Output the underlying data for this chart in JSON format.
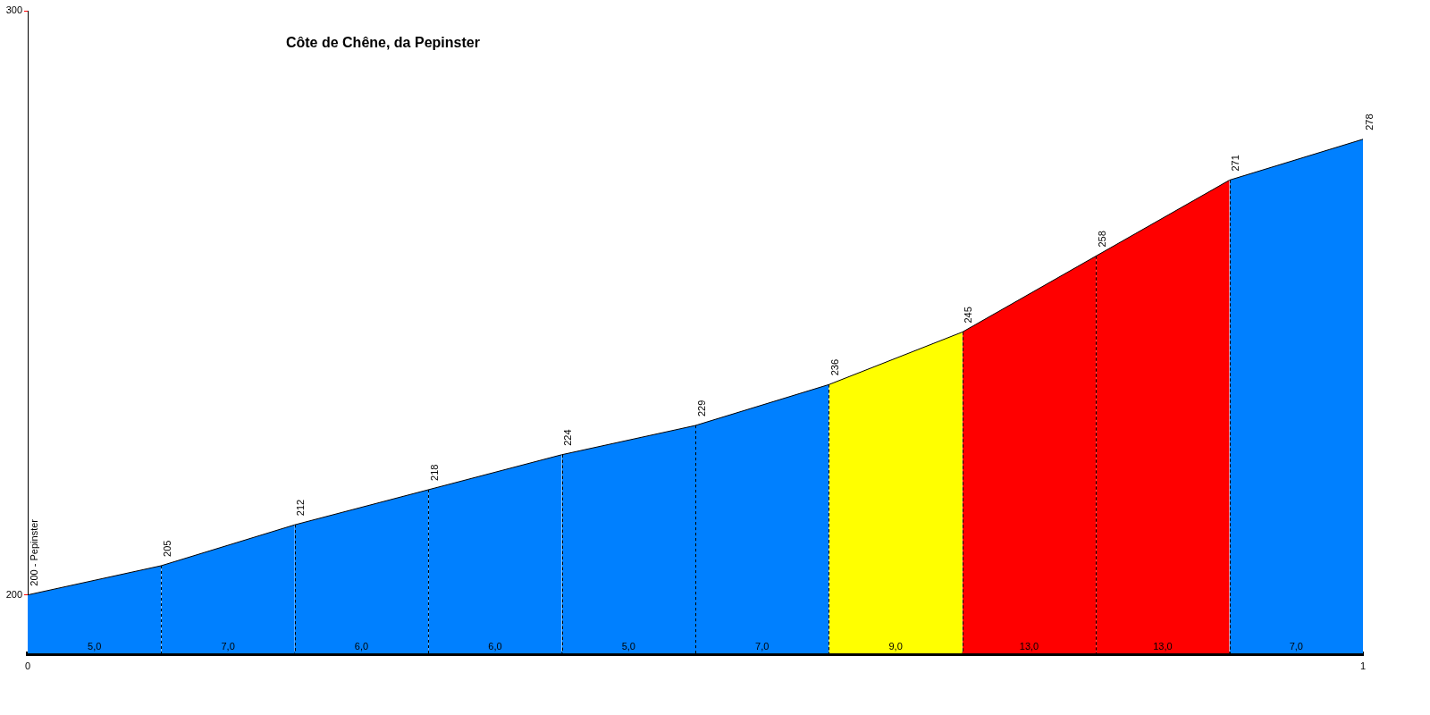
{
  "chart_data": {
    "type": "area",
    "title": "Côte de Chêne, da Pepinster",
    "xlim": [
      0,
      1
    ],
    "xticks": [
      0,
      1
    ],
    "ylim": [
      190,
      300
    ],
    "yticks": [
      200,
      300
    ],
    "series": [
      {
        "x": [
          0,
          0.1
        ],
        "values": [
          200,
          205
        ],
        "color": "#0080ff",
        "value_labels": [
          "200 - Pepinster",
          "205"
        ]
      },
      {
        "x": [
          0.1,
          0.2
        ],
        "values": [
          205,
          212
        ],
        "color": "#0080ff",
        "value_labels": [
          null,
          "212"
        ]
      },
      {
        "x": [
          0.2,
          0.3
        ],
        "values": [
          212,
          218
        ],
        "color": "#0080ff",
        "value_labels": [
          null,
          "218"
        ]
      },
      {
        "x": [
          0.3,
          0.4
        ],
        "values": [
          218,
          224
        ],
        "color": "#0080ff",
        "value_labels": [
          null,
          "224"
        ]
      },
      {
        "x": [
          0.4,
          0.5
        ],
        "values": [
          224,
          229
        ],
        "color": "#0080ff",
        "value_labels": [
          null,
          "229"
        ]
      },
      {
        "x": [
          0.5,
          0.6
        ],
        "values": [
          229,
          236
        ],
        "color": "#0080ff",
        "value_labels": [
          null,
          "236"
        ]
      },
      {
        "x": [
          0.6,
          0.7
        ],
        "values": [
          236,
          245
        ],
        "color": "#ffff00",
        "value_labels": [
          null,
          "245"
        ]
      },
      {
        "x": [
          0.7,
          0.8
        ],
        "values": [
          245,
          258
        ],
        "color": "#ff0000",
        "value_labels": [
          null,
          "258"
        ]
      },
      {
        "x": [
          0.8,
          0.9
        ],
        "values": [
          258,
          271
        ],
        "color": "#ff0000",
        "value_labels": [
          null,
          "271"
        ]
      },
      {
        "x": [
          0.9,
          1
        ],
        "values": [
          271,
          278
        ],
        "color": "#0080ff",
        "value_labels": [
          null,
          "278"
        ]
      }
    ],
    "annotations": [
      "5,0",
      "7,0",
      "6,0",
      "6,0",
      "5,0",
      "7,0",
      "9,0",
      "13,0",
      "13,0",
      "7,0"
    ]
  }
}
